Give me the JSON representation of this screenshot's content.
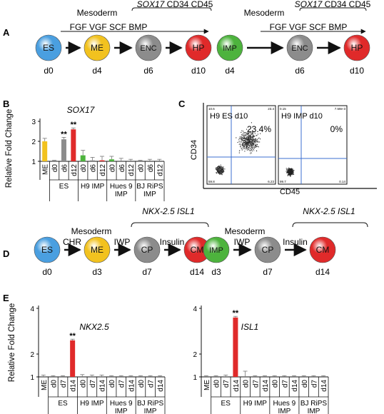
{
  "panelA": {
    "letter": "A",
    "left": {
      "mesoderm": "Mesoderm",
      "markers_gene": "SOX17",
      "markers_rest": " CD34 CD45",
      "factors": "FGF VGF SCF BMP",
      "nodes": [
        {
          "label": "ES",
          "day": "d0",
          "color": "#4a9fe0"
        },
        {
          "label": "ME",
          "day": "d4",
          "color": "#f2c21f"
        },
        {
          "label": "ENC",
          "day": "d6",
          "color": "#8c8c8c"
        },
        {
          "label": "HP",
          "day": "d10",
          "color": "#e02a2a"
        }
      ]
    },
    "right": {
      "mesoderm": "Mesoderm",
      "markers_gene": "SOX17",
      "markers_rest": " CD34 CD45",
      "factors": "FGF VGF SCF BMP",
      "nodes": [
        {
          "label": "IMP",
          "day": "d4",
          "color": "#4db33d"
        },
        {
          "label": "ENC",
          "day": "d6",
          "color": "#8c8c8c"
        },
        {
          "label": "HP",
          "day": "d10",
          "color": "#e02a2a"
        }
      ]
    }
  },
  "panelB": {
    "letter": "B",
    "title": "SOX17",
    "ylabel": "Relative Fold Change",
    "significance": "**",
    "chart_data": {
      "type": "bar",
      "title": "SOX17",
      "ylabel": "Relative Fold Change",
      "ylim": [
        1,
        3
      ],
      "yticks": [
        1,
        2,
        3
      ],
      "categories": [
        "ME",
        "d0",
        "d6",
        "d12",
        "d0",
        "d6",
        "d12",
        "d0",
        "d6",
        "d12",
        "d0",
        "d6",
        "d12"
      ],
      "values": [
        2.0,
        1.0,
        2.1,
        2.6,
        1.3,
        1.05,
        1.05,
        1.1,
        1.0,
        1.0,
        1.0,
        1.0,
        1.0
      ],
      "errors": [
        0.15,
        0.05,
        0.1,
        0.07,
        0.25,
        0.15,
        0.2,
        0.15,
        0.15,
        0.1,
        0.05,
        0.1,
        0.1
      ],
      "colors": [
        "#f2c21f",
        "#4a9fe0",
        "#8c8c8c",
        "#e02a2a",
        "#4db33d",
        "#8c8c8c",
        "#e02a2a",
        "#4db33d",
        "#8c8c8c",
        "#e02a2a",
        "#4db33d",
        "#8c8c8c",
        "#e02a2a"
      ],
      "significant": [
        false,
        false,
        true,
        true,
        false,
        false,
        false,
        false,
        false,
        false,
        false,
        false,
        false
      ],
      "groups": [
        {
          "label": "ES",
          "lines": [
            "ES"
          ],
          "start": 1,
          "end": 3
        },
        {
          "label": "H9 IMP",
          "lines": [
            "H9 IMP"
          ],
          "start": 4,
          "end": 6
        },
        {
          "label": "Hues 9 IMP",
          "lines": [
            "Hues 9",
            "IMP"
          ],
          "start": 7,
          "end": 9
        },
        {
          "label": "BJ RiPS IMP",
          "lines": [
            "BJ RiPS",
            "IMP"
          ],
          "start": 10,
          "end": 12
        }
      ]
    }
  },
  "panelC": {
    "letter": "C",
    "xlabel": "CD45",
    "ylabel": "CD34",
    "plots": [
      {
        "title": "H9 ES d10",
        "percent": "23.4%",
        "q_ul": "10.6",
        "q_ur": "23.4",
        "q_ll": "59.8",
        "q_lr": "6.23"
      },
      {
        "title": "H9 IMP d10",
        "percent": "0%",
        "q_ul": "0.15",
        "q_ur": "7.59e-3",
        "q_ll": "99.7",
        "q_lr": "0.14"
      }
    ]
  },
  "panelD": {
    "letter": "D",
    "left": {
      "markers_nkx": "NKX-2.5",
      "markers_isl": "ISL1",
      "mesoderm": "Mesoderm",
      "arrow_labels": [
        "CHR",
        "IWP",
        "Insulin"
      ],
      "nodes": [
        {
          "label": "ES",
          "day": "d0",
          "color": "#4a9fe0"
        },
        {
          "label": "ME",
          "day": "d3",
          "color": "#f2c21f"
        },
        {
          "label": "CP",
          "day": "d7",
          "color": "#8c8c8c"
        },
        {
          "label": "CM",
          "day": "d14",
          "color": "#e02a2a"
        }
      ]
    },
    "right": {
      "markers_nkx": "NKX-2.5",
      "markers_isl": "ISL1",
      "mesoderm": "Mesoderm",
      "arrow_labels": [
        "IWP",
        "Insulin"
      ],
      "nodes": [
        {
          "label": "IMP",
          "day": "d3",
          "color": "#4db33d"
        },
        {
          "label": "CP",
          "day": "d7",
          "color": "#8c8c8c"
        },
        {
          "label": "CM",
          "day": "d14",
          "color": "#e02a2a"
        }
      ]
    }
  },
  "panelE": {
    "letter": "E",
    "ylabel": "Relative Fold Change",
    "significance": "**",
    "chart_data": [
      {
        "type": "bar",
        "title": "NKX2.5",
        "ylim": [
          1,
          4
        ],
        "yticks": [
          1,
          2,
          4
        ],
        "categories": [
          "ME",
          "d0",
          "d7",
          "d14",
          "d0",
          "d7",
          "d14",
          "d0",
          "d7",
          "d14",
          "d0",
          "d7",
          "d14"
        ],
        "values": [
          1.0,
          1.0,
          1.0,
          2.6,
          1.0,
          1.0,
          1.0,
          1.0,
          1.0,
          1.0,
          1.0,
          1.0,
          1.0
        ],
        "errors": [
          0.08,
          0.05,
          0.05,
          0.05,
          0.1,
          0.08,
          0.08,
          0.05,
          0.05,
          0.05,
          0.05,
          0.05,
          0.05
        ],
        "colors": [
          "#f2c21f",
          "#4a9fe0",
          "#8c8c8c",
          "#e02a2a",
          "#4db33d",
          "#8c8c8c",
          "#e02a2a",
          "#4db33d",
          "#8c8c8c",
          "#e02a2a",
          "#4db33d",
          "#8c8c8c",
          "#e02a2a"
        ],
        "significant": [
          false,
          false,
          false,
          true,
          false,
          false,
          false,
          false,
          false,
          false,
          false,
          false,
          false
        ]
      },
      {
        "type": "bar",
        "title": "ISL1",
        "ylim": [
          1,
          4
        ],
        "yticks": [
          1,
          2,
          4
        ],
        "categories": [
          "ME",
          "d0",
          "d7",
          "d14",
          "d0",
          "d7",
          "d14",
          "d0",
          "d7",
          "d14",
          "d0",
          "d7",
          "d14"
        ],
        "values": [
          1.0,
          1.0,
          1.0,
          3.6,
          1.0,
          1.0,
          1.0,
          1.0,
          1.0,
          1.0,
          1.0,
          1.0,
          1.0
        ],
        "errors": [
          0.05,
          0.05,
          0.08,
          0.05,
          0.25,
          0.05,
          0.05,
          0.05,
          0.05,
          0.05,
          0.05,
          0.05,
          0.05
        ],
        "colors": [
          "#f2c21f",
          "#4a9fe0",
          "#8c8c8c",
          "#e02a2a",
          "#4db33d",
          "#8c8c8c",
          "#e02a2a",
          "#4db33d",
          "#8c8c8c",
          "#e02a2a",
          "#4db33d",
          "#8c8c8c",
          "#e02a2a"
        ],
        "significant": [
          false,
          false,
          false,
          true,
          false,
          false,
          false,
          false,
          false,
          false,
          false,
          false,
          false
        ]
      }
    ],
    "groups": [
      {
        "label": "ES",
        "lines": [
          "ES"
        ],
        "start": 1,
        "end": 3
      },
      {
        "label": "H9 IMP",
        "lines": [
          "H9 IMP"
        ],
        "start": 4,
        "end": 6
      },
      {
        "label": "Hues 9 IMP",
        "lines": [
          "Hues 9",
          "IMP"
        ],
        "start": 7,
        "end": 9
      },
      {
        "label": "BJ RiPS IMP",
        "lines": [
          "BJ RiPS",
          "IMP"
        ],
        "start": 10,
        "end": 12
      }
    ]
  }
}
